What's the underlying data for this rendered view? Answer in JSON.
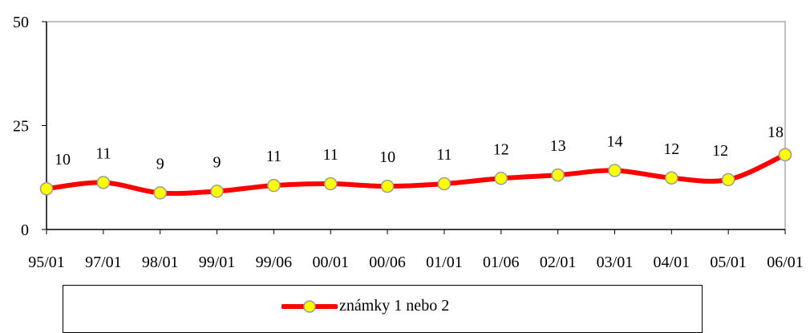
{
  "chart_data": {
    "type": "line",
    "categories": [
      "95/01",
      "97/01",
      "98/01",
      "99/01",
      "99/06",
      "00/01",
      "00/06",
      "01/01",
      "01/06",
      "02/01",
      "03/01",
      "04/01",
      "05/01",
      "06/01"
    ],
    "series": [
      {
        "name": "známky 1 nebo 2",
        "values": [
          10,
          11,
          9,
          9,
          11,
          11,
          10,
          11,
          12,
          13,
          14,
          12,
          12,
          18
        ],
        "plotted_values": [
          9.8,
          11.3,
          8.8,
          9.2,
          10.6,
          11.0,
          10.4,
          11.0,
          12.3,
          13.1,
          14.2,
          12.4,
          12.0,
          18.0
        ],
        "line_color": "#ff0000",
        "marker_fill": "#ffff00",
        "marker_stroke": "#999999"
      }
    ],
    "title": "",
    "xlabel": "",
    "ylabel": "",
    "ylim": [
      0,
      50
    ],
    "yticks": [
      0,
      25,
      50
    ],
    "grid": false,
    "legend_position": "bottom",
    "plot_border_color": "#808080"
  }
}
